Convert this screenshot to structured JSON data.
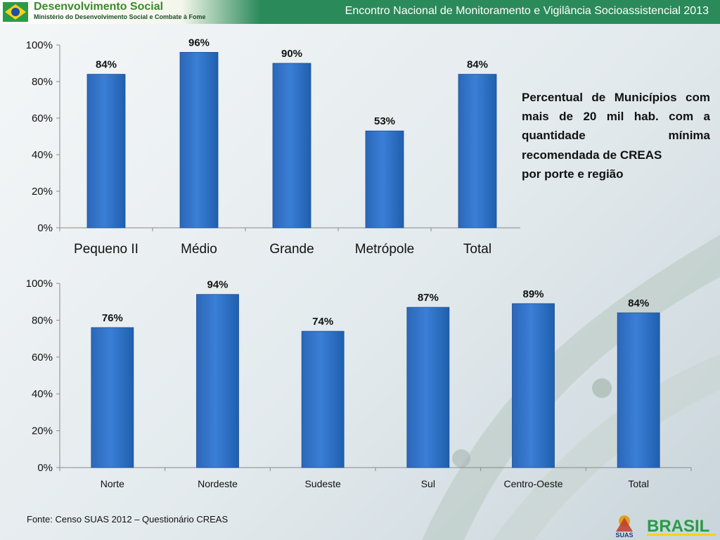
{
  "header": {
    "brand_title": "Desenvolvimento Social",
    "brand_subtitle": "Ministério do Desenvolvimento Social e Combate à Fome",
    "event_title": "Encontro Nacional de Monitoramento e Vigilância Socioassistencial 2013"
  },
  "caption": {
    "line1": "Percentual de Municípios com mais de 20 mil hab. com a quantidade mínima recomendada de CREAS",
    "line2": "por porte e região"
  },
  "source": "Fonte: Censo SUAS 2012 – Questionário CREAS",
  "footer_logos": {
    "suas": "SUAS",
    "brasil": "BRASIL"
  },
  "colors": {
    "bar": "#3a7fd6",
    "bar_dark": "#1f5fae",
    "header_green": "#2b8a5a"
  },
  "chart_data": [
    {
      "type": "bar",
      "categories": [
        "Pequeno II",
        "Médio",
        "Grande",
        "Metrópole",
        "Total"
      ],
      "values": [
        84,
        96,
        90,
        53,
        84
      ],
      "value_labels": [
        "84%",
        "96%",
        "90%",
        "53%",
        "84%"
      ],
      "yticks": [
        "0%",
        "20%",
        "40%",
        "60%",
        "80%",
        "100%"
      ],
      "ylim": [
        0,
        100
      ],
      "grid": false
    },
    {
      "type": "bar",
      "categories": [
        "Norte",
        "Nordeste",
        "Sudeste",
        "Sul",
        "Centro-Oeste",
        "Total"
      ],
      "values": [
        76,
        94,
        74,
        87,
        89,
        84
      ],
      "value_labels": [
        "76%",
        "94%",
        "74%",
        "87%",
        "89%",
        "84%"
      ],
      "yticks": [
        "0%",
        "20%",
        "40%",
        "60%",
        "80%",
        "100%"
      ],
      "ylim": [
        0,
        100
      ],
      "grid": false
    }
  ]
}
